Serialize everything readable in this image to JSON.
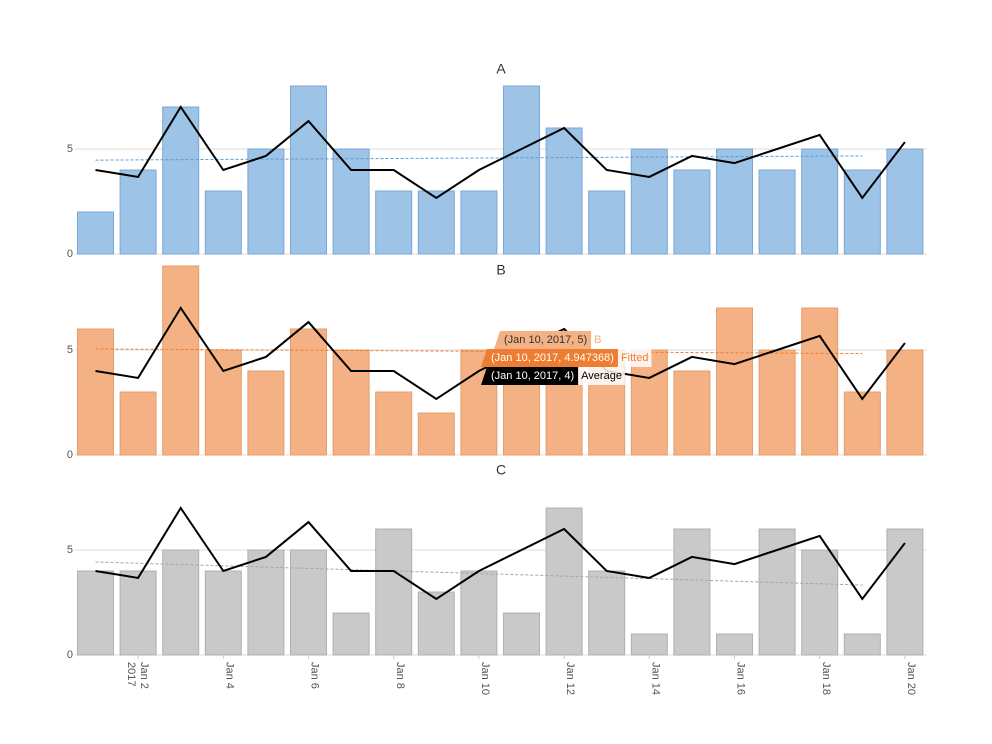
{
  "chart_data": {
    "type": "bar",
    "x": [
      "2017-01-01",
      "2017-01-02",
      "2017-01-03",
      "2017-01-04",
      "2017-01-05",
      "2017-01-06",
      "2017-01-07",
      "2017-01-08",
      "2017-01-09",
      "2017-01-10",
      "2017-01-11",
      "2017-01-12",
      "2017-01-13",
      "2017-01-14",
      "2017-01-15",
      "2017-01-16",
      "2017-01-17",
      "2017-01-18",
      "2017-01-19",
      "2017-01-20"
    ],
    "xticks": [
      {
        "value": "2017-01-02",
        "label": "Jan 2",
        "sublabel": "2017"
      },
      {
        "value": "2017-01-04",
        "label": "Jan 4"
      },
      {
        "value": "2017-01-06",
        "label": "Jan 6"
      },
      {
        "value": "2017-01-08",
        "label": "Jan 8"
      },
      {
        "value": "2017-01-10",
        "label": "Jan 10"
      },
      {
        "value": "2017-01-12",
        "label": "Jan 12"
      },
      {
        "value": "2017-01-14",
        "label": "Jan 14"
      },
      {
        "value": "2017-01-16",
        "label": "Jan 16"
      },
      {
        "value": "2017-01-18",
        "label": "Jan 18"
      },
      {
        "value": "2017-01-20",
        "label": "Jan 20"
      }
    ],
    "average": {
      "name": "Average",
      "color": "#000000",
      "values": [
        4,
        3.67,
        7,
        4,
        4.67,
        6.33,
        4,
        4,
        2.67,
        4,
        5,
        6,
        4,
        3.67,
        4.67,
        4.33,
        5,
        5.67,
        2.67,
        5.33
      ]
    },
    "panels": [
      {
        "title": "A",
        "color": "#9dc3e6",
        "stroke": "#7aa7d5",
        "ylim": [
          0,
          8
        ],
        "yticks": [
          0,
          5
        ],
        "values": [
          2,
          4,
          7,
          3,
          5,
          8,
          5,
          3,
          3,
          3,
          8,
          6,
          3,
          5,
          4,
          5,
          4,
          5,
          4,
          5
        ],
        "fitted": {
          "name": "Fitted",
          "color": "#5b9bd5",
          "x": [
            "2017-01-01",
            "2017-01-19"
          ],
          "values": [
            4.47,
            4.67
          ]
        }
      },
      {
        "title": "B",
        "color": "#f4b183",
        "stroke": "#e59d6b",
        "ylim": [
          0,
          9
        ],
        "yticks": [
          0,
          5
        ],
        "values": [
          6,
          3,
          9,
          5,
          4,
          6,
          5,
          3,
          2,
          5,
          5,
          5,
          5,
          5,
          4,
          7,
          5,
          7,
          3,
          5
        ],
        "fitted": {
          "name": "Fitted",
          "color": "#ed7d31",
          "x": [
            "2017-01-01",
            "2017-01-19"
          ],
          "values": [
            5.05,
            4.83
          ]
        }
      },
      {
        "title": "C",
        "color": "#c9c9c9",
        "stroke": "#b0b0b0",
        "ylim": [
          0,
          7
        ],
        "yticks": [
          0,
          5
        ],
        "values": [
          4,
          4,
          5,
          4,
          5,
          5,
          2,
          6,
          3,
          4,
          2,
          7,
          4,
          1,
          6,
          1,
          6,
          5,
          1,
          6
        ],
        "fitted": {
          "name": "Fitted",
          "color": "#a5a5a5",
          "x": [
            "2017-01-01",
            "2017-01-19"
          ],
          "values": [
            4.43,
            3.33
          ]
        }
      }
    ],
    "tooltip": [
      {
        "text": "(Jan 10, 2017, 5)",
        "name": "B",
        "color": "#f4b183"
      },
      {
        "text": "(Jan 10, 2017, 4.947368)",
        "name": "Fitted",
        "color": "#ed7d31"
      },
      {
        "text": "(Jan 10, 2017, 4)",
        "name": "Average",
        "color": "#000000"
      }
    ]
  }
}
